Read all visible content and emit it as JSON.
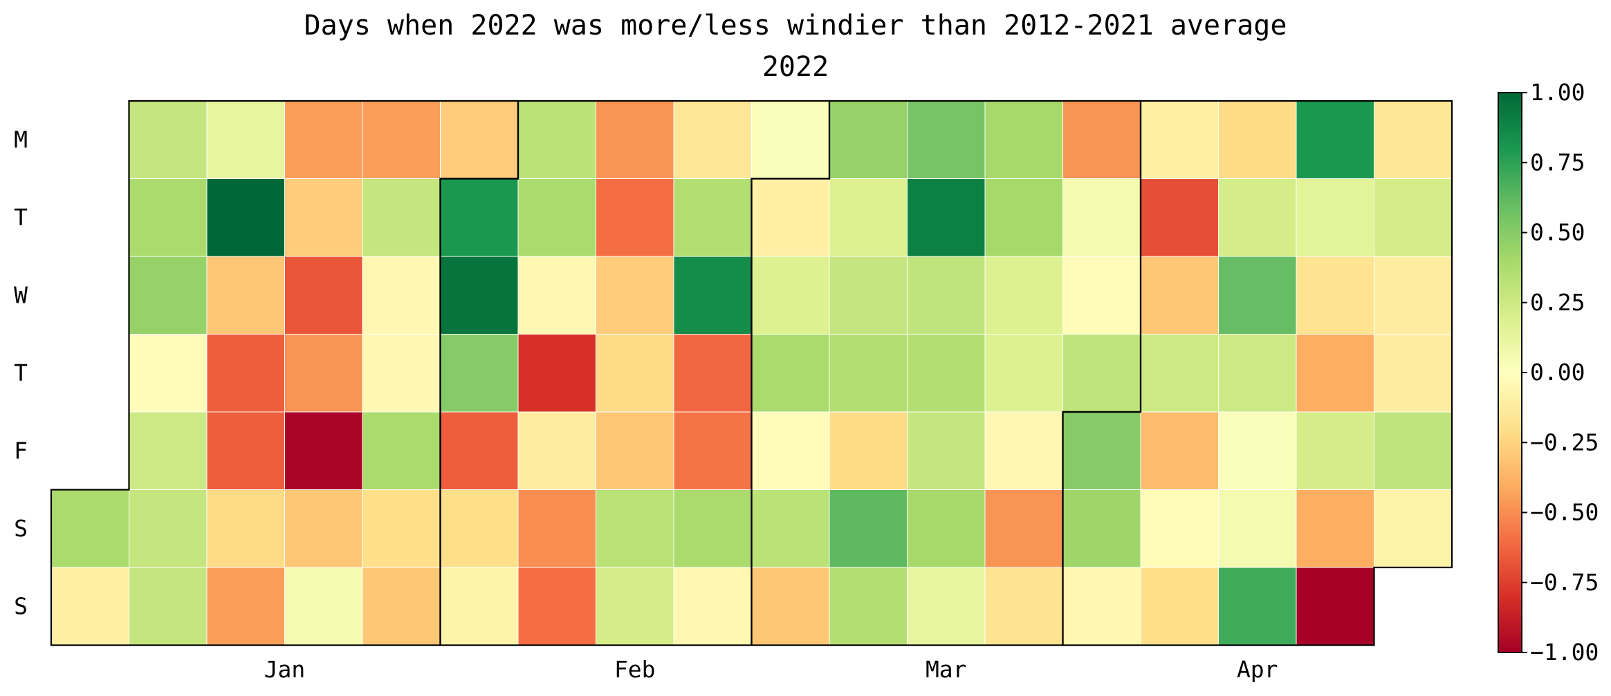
{
  "chart_data": {
    "type": "heatmap",
    "title": "Days when 2022 was more/less windier than 2012-2021 average",
    "subtitle": "2022",
    "year": 2022,
    "day_labels": [
      "M",
      "T",
      "W",
      "T",
      "F",
      "S",
      "S"
    ],
    "month_labels": [
      "Jan",
      "Feb",
      "Mar",
      "Apr"
    ],
    "colorscale": "RdYlGn",
    "vmin": -1.0,
    "vmax": 1.0,
    "colorbar_ticks": [
      "1.00",
      "0.75",
      "0.50",
      "0.25",
      "0.00",
      "−0.25",
      "−0.50",
      "−0.75",
      "−1.00"
    ],
    "weeks": [
      [
        null,
        null,
        null,
        null,
        null,
        0.38,
        -0.1
      ],
      [
        0.28,
        0.38,
        0.45,
        -0.02,
        0.25,
        0.28,
        0.28
      ],
      [
        0.12,
        1.0,
        -0.3,
        -0.65,
        -0.65,
        -0.22,
        -0.45
      ],
      [
        -0.45,
        -0.28,
        -0.68,
        -0.48,
        -0.98,
        -0.3,
        0.05
      ],
      [
        -0.45,
        0.28,
        -0.05,
        -0.05,
        0.38,
        -0.2,
        -0.3
      ],
      [
        -0.28,
        0.8,
        0.95,
        0.5,
        -0.65,
        -0.2,
        -0.08
      ],
      [
        0.32,
        0.38,
        -0.05,
        -0.8,
        -0.12,
        -0.5,
        -0.6
      ],
      [
        -0.48,
        -0.6,
        -0.28,
        -0.22,
        -0.3,
        0.32,
        0.22
      ],
      [
        -0.15,
        0.35,
        0.85,
        -0.62,
        -0.58,
        0.38,
        -0.05
      ],
      [
        0.02,
        -0.1,
        0.18,
        0.38,
        -0.02,
        0.32,
        -0.3
      ],
      [
        0.45,
        0.18,
        0.28,
        0.35,
        -0.22,
        0.62,
        0.35
      ],
      [
        0.55,
        0.9,
        0.3,
        0.35,
        0.28,
        0.4,
        0.12
      ],
      [
        0.4,
        0.4,
        0.18,
        0.18,
        -0.05,
        -0.48,
        -0.18
      ],
      [
        -0.48,
        0.06,
        -0.02,
        0.3,
        0.5,
        0.42,
        -0.05
      ],
      [
        -0.1,
        -0.7,
        -0.3,
        0.25,
        -0.35,
        -0.02,
        -0.2
      ],
      [
        -0.22,
        0.22,
        0.6,
        0.25,
        0.02,
        0.06,
        0.7
      ],
      [
        0.8,
        0.15,
        -0.18,
        -0.4,
        0.22,
        -0.4,
        -1.0
      ],
      [
        -0.15,
        0.22,
        -0.12,
        -0.12,
        0.3,
        -0.08,
        null
      ]
    ]
  }
}
